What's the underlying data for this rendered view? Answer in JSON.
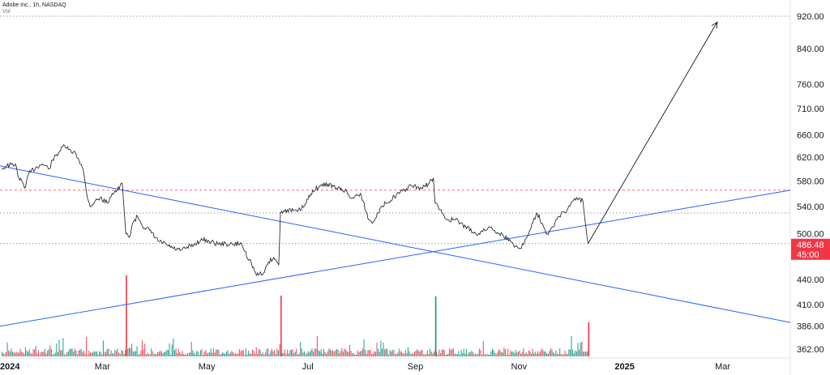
{
  "header": {
    "title": "Adobe Inc., 1h, NASDAQ",
    "volume_label": "Vol"
  },
  "colors": {
    "up": "#089981",
    "down": "#f23645",
    "trend": "#2962ff",
    "price_line": "#131722",
    "last_price_bg": "#f23645",
    "dashed_level": "#f7525f",
    "dotted_level": "#787b86",
    "arrow": "#131722"
  },
  "chart_data": {
    "type": "line",
    "title": "Adobe Inc., 1h, NASDAQ",
    "xlabel": "",
    "ylabel": "",
    "y_scale": "log",
    "ylim": [
      358,
      1000
    ],
    "x_ticks": [
      {
        "label": "2024",
        "date": "2024-01-01",
        "bold": true
      },
      {
        "label": "Mar",
        "date": "2024-03-01",
        "bold": false
      },
      {
        "label": "May",
        "date": "2024-05-01",
        "bold": false
      },
      {
        "label": "Jul",
        "date": "2024-07-01",
        "bold": false
      },
      {
        "label": "Sep",
        "date": "2024-09-01",
        "bold": false
      },
      {
        "label": "Nov",
        "date": "2024-11-01",
        "bold": false
      },
      {
        "label": "2025",
        "date": "2025-01-01",
        "bold": true
      },
      {
        "label": "Mar",
        "date": "2025-03-01",
        "bold": false
      }
    ],
    "y_ticks": [
      "920.00",
      "840.00",
      "760.00",
      "710.00",
      "660.00",
      "620.00",
      "580.00",
      "540.00",
      "500.00",
      "440.00",
      "410.00",
      "386.00",
      "362.00"
    ],
    "xlim": [
      "2024-01-01",
      "2025-04-10"
    ],
    "grid": false,
    "series": [
      {
        "kind": "price",
        "points": [
          [
            "2024-01-02",
            600
          ],
          [
            "2024-01-05",
            605
          ],
          [
            "2024-01-10",
            608
          ],
          [
            "2024-01-12",
            585
          ],
          [
            "2024-01-16",
            570
          ],
          [
            "2024-01-18",
            592
          ],
          [
            "2024-01-22",
            602
          ],
          [
            "2024-01-26",
            608
          ],
          [
            "2024-01-30",
            600
          ],
          [
            "2024-02-01",
            615
          ],
          [
            "2024-02-05",
            630
          ],
          [
            "2024-02-08",
            640
          ],
          [
            "2024-02-12",
            628
          ],
          [
            "2024-02-14",
            630
          ],
          [
            "2024-02-16",
            618
          ],
          [
            "2024-02-19",
            598
          ],
          [
            "2024-02-21",
            560
          ],
          [
            "2024-02-23",
            540
          ],
          [
            "2024-02-26",
            548
          ],
          [
            "2024-02-29",
            553
          ],
          [
            "2024-03-04",
            545
          ],
          [
            "2024-03-07",
            560
          ],
          [
            "2024-03-10",
            565
          ],
          [
            "2024-03-13",
            575
          ],
          [
            "2024-03-15",
            500
          ],
          [
            "2024-03-17",
            495
          ],
          [
            "2024-03-19",
            515
          ],
          [
            "2024-03-22",
            525
          ],
          [
            "2024-03-26",
            508
          ],
          [
            "2024-03-29",
            505
          ],
          [
            "2024-04-03",
            490
          ],
          [
            "2024-04-08",
            485
          ],
          [
            "2024-04-12",
            480
          ],
          [
            "2024-04-16",
            477
          ],
          [
            "2024-04-19",
            480
          ],
          [
            "2024-04-24",
            485
          ],
          [
            "2024-04-29",
            492
          ],
          [
            "2024-05-03",
            490
          ],
          [
            "2024-05-08",
            486
          ],
          [
            "2024-05-13",
            486
          ],
          [
            "2024-05-17",
            485
          ],
          [
            "2024-05-22",
            487
          ],
          [
            "2024-05-24",
            476
          ],
          [
            "2024-05-28",
            460
          ],
          [
            "2024-05-31",
            445
          ],
          [
            "2024-06-04",
            448
          ],
          [
            "2024-06-07",
            462
          ],
          [
            "2024-06-10",
            468
          ],
          [
            "2024-06-13",
            458
          ],
          [
            "2024-06-14",
            530
          ],
          [
            "2024-06-18",
            535
          ],
          [
            "2024-06-24",
            532
          ],
          [
            "2024-06-28",
            540
          ],
          [
            "2024-07-03",
            565
          ],
          [
            "2024-07-08",
            572
          ],
          [
            "2024-07-12",
            575
          ],
          [
            "2024-07-17",
            568
          ],
          [
            "2024-07-22",
            565
          ],
          [
            "2024-07-26",
            552
          ],
          [
            "2024-07-31",
            560
          ],
          [
            "2024-08-05",
            520
          ],
          [
            "2024-08-07",
            515
          ],
          [
            "2024-08-10",
            530
          ],
          [
            "2024-08-15",
            545
          ],
          [
            "2024-08-20",
            555
          ],
          [
            "2024-08-26",
            565
          ],
          [
            "2024-08-30",
            572
          ],
          [
            "2024-09-05",
            568
          ],
          [
            "2024-09-09",
            575
          ],
          [
            "2024-09-12",
            585
          ],
          [
            "2024-09-13",
            545
          ],
          [
            "2024-09-17",
            530
          ],
          [
            "2024-09-20",
            520
          ],
          [
            "2024-09-25",
            520
          ],
          [
            "2024-10-01",
            510
          ],
          [
            "2024-10-07",
            500
          ],
          [
            "2024-10-11",
            503
          ],
          [
            "2024-10-15",
            510
          ],
          [
            "2024-10-18",
            505
          ],
          [
            "2024-10-23",
            498
          ],
          [
            "2024-10-28",
            488
          ],
          [
            "2024-11-01",
            480
          ],
          [
            "2024-11-04",
            485
          ],
          [
            "2024-11-07",
            500
          ],
          [
            "2024-11-09",
            515
          ],
          [
            "2024-11-12",
            530
          ],
          [
            "2024-11-15",
            515
          ],
          [
            "2024-11-18",
            500
          ],
          [
            "2024-11-21",
            510
          ],
          [
            "2024-11-25",
            525
          ],
          [
            "2024-11-27",
            532
          ],
          [
            "2024-11-29",
            530
          ],
          [
            "2024-12-02",
            545
          ],
          [
            "2024-12-04",
            552
          ],
          [
            "2024-12-06",
            550
          ],
          [
            "2024-12-09",
            548
          ],
          [
            "2024-12-12",
            486.48
          ]
        ]
      }
    ],
    "trend_lines": [
      {
        "name": "descending",
        "from": [
          "2024-01-01",
          605
        ],
        "to": [
          "2025-04-10",
          390
        ]
      },
      {
        "name": "ascending",
        "from": [
          "2024-01-01",
          386
        ],
        "to": [
          "2025-04-10",
          565
        ]
      }
    ],
    "arrow": {
      "from": [
        "2024-12-12",
        486.48
      ],
      "to": [
        "2025-02-26",
        905
      ]
    },
    "horizontal_levels": [
      {
        "value": 920,
        "style": "dotted"
      },
      {
        "value": 565,
        "style": "dashed"
      },
      {
        "value": 530,
        "style": "dotted"
      },
      {
        "value": 486.48,
        "style": "dotted"
      }
    ],
    "last_price": {
      "value": "486.48",
      "countdown": "45:00"
    },
    "volume": {
      "note": "relative volume bars along the bottom; spikes shown as heights relative to max",
      "spikes": [
        {
          "date": "2024-03-15",
          "rel": 1.0,
          "color": "down"
        },
        {
          "date": "2024-06-14",
          "rel": 0.75,
          "color": "down"
        },
        {
          "date": "2024-09-13",
          "rel": 0.74,
          "color": "up"
        },
        {
          "date": "2024-12-12",
          "rel": 0.42,
          "color": "down"
        }
      ]
    }
  }
}
